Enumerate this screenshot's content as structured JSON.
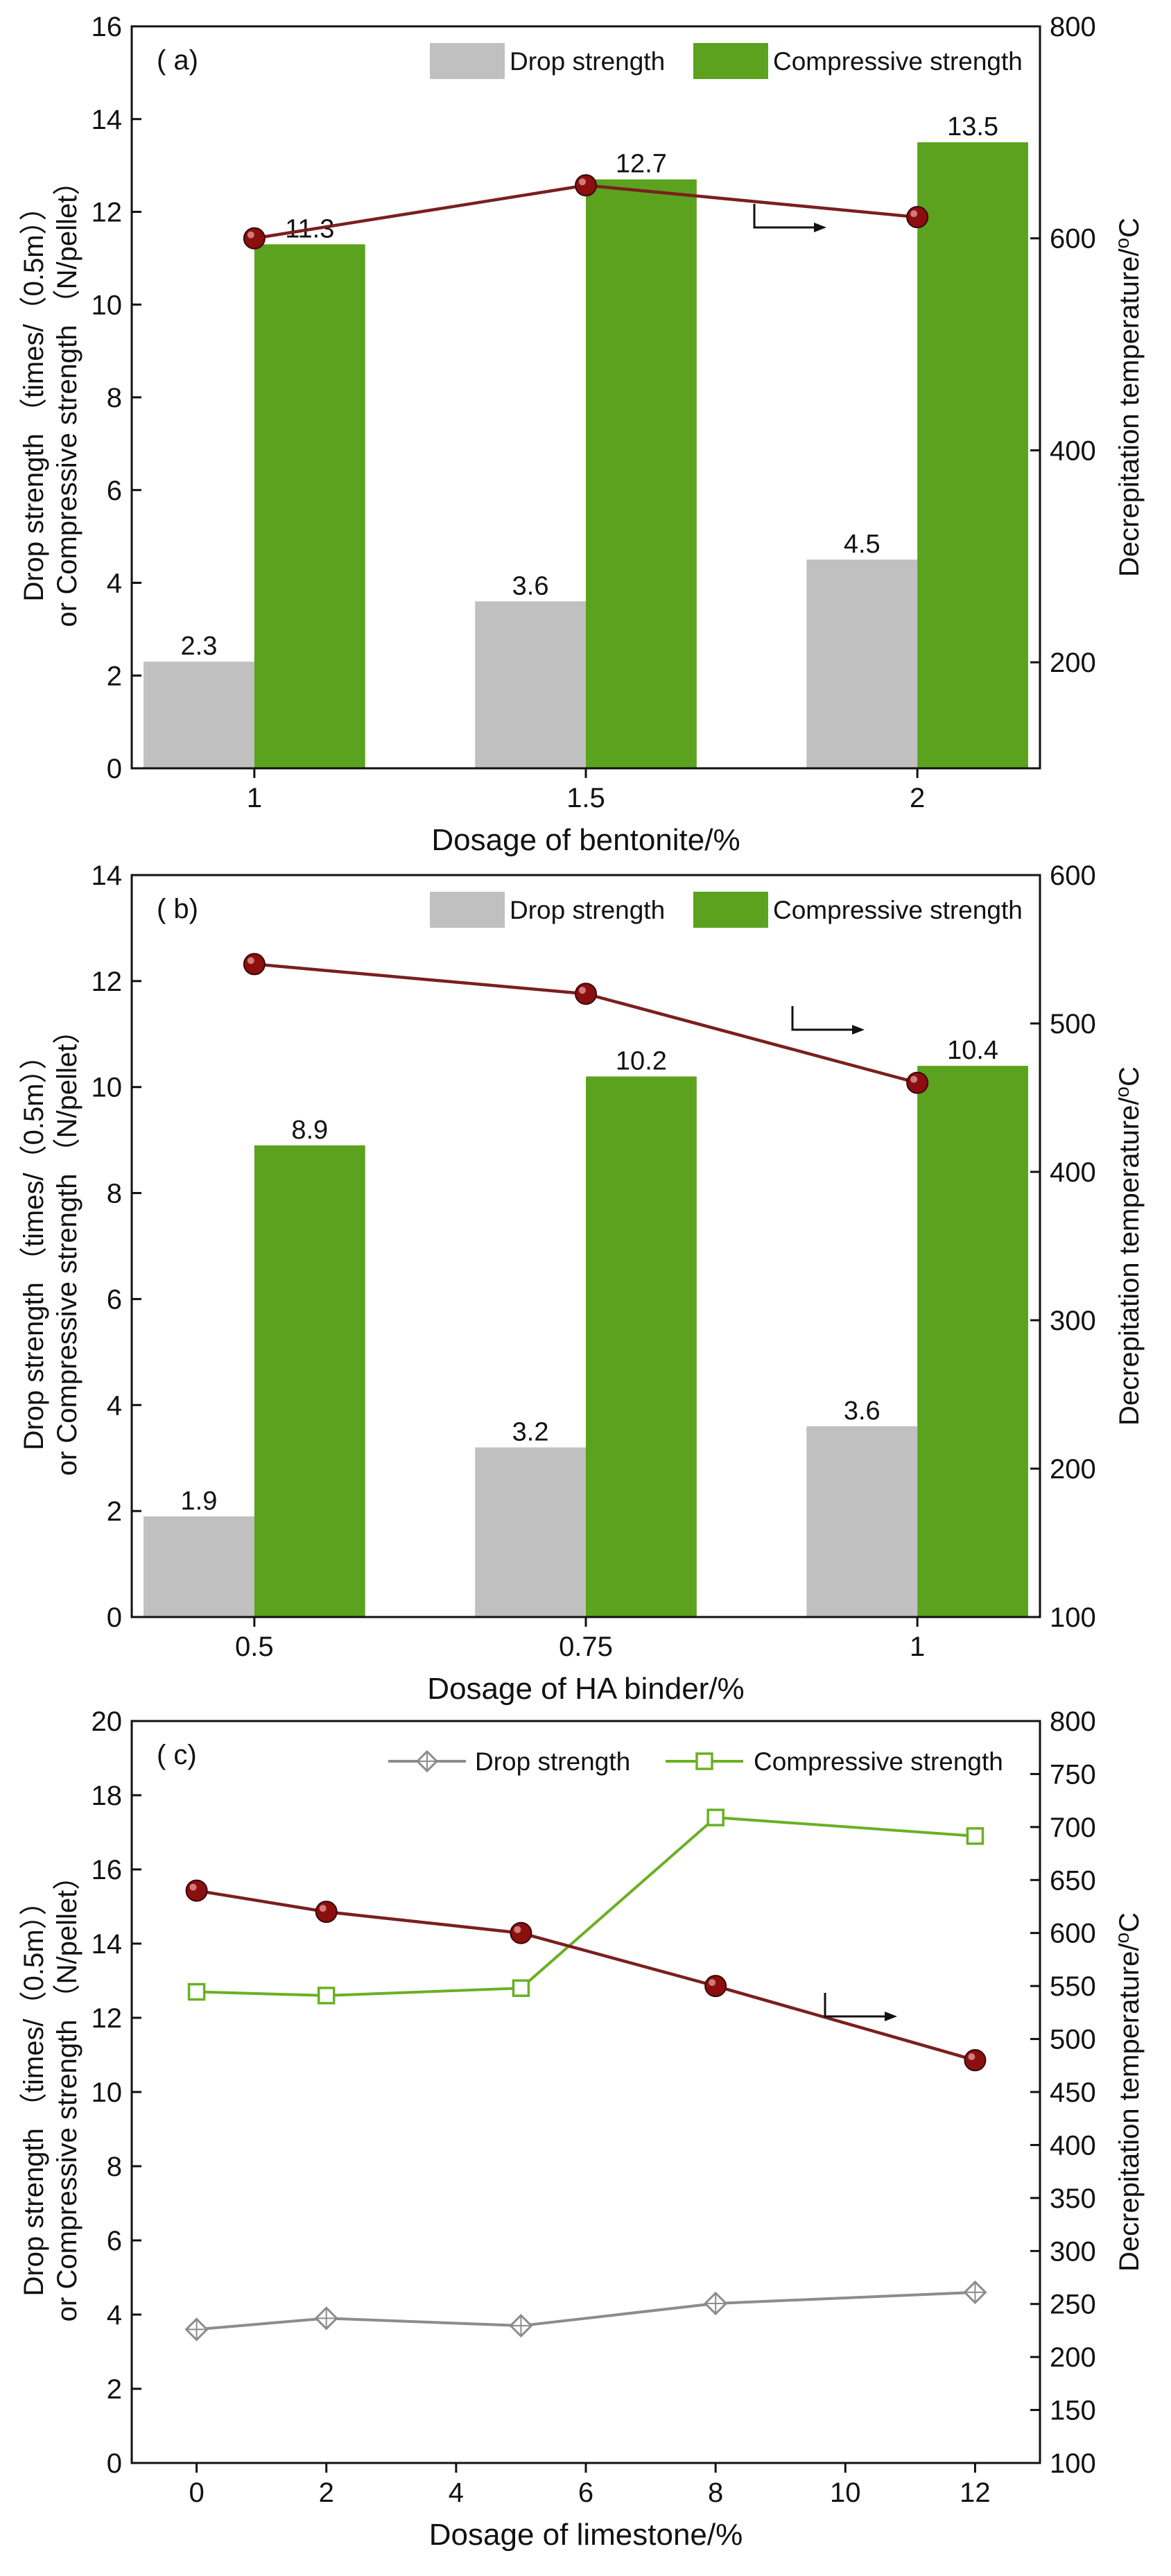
{
  "chart_data": [
    {
      "type": "bar",
      "panel": "( a)",
      "categories": [
        "1",
        "1.5",
        "2"
      ],
      "series": [
        {
          "name": "Drop strength",
          "values": [
            2.3,
            3.6,
            4.5
          ],
          "labels": [
            "2.3",
            "3.6",
            "4.5"
          ],
          "color": "#c0c0c0"
        },
        {
          "name": "Compressive strength",
          "values": [
            11.3,
            12.7,
            13.5
          ],
          "labels": [
            "11.3",
            "12.7",
            "13.5"
          ],
          "color": "#5ba21e"
        }
      ],
      "line": {
        "name": "Decrepitation temperature",
        "axis": "right",
        "values": [
          600,
          650,
          620
        ],
        "color": "#7a1f1f",
        "marker_color": "#8b0f0f"
      },
      "xlabel": "Dosage of bentonite/%",
      "ylabel_line1": "Drop strength （times/（0.5m））",
      "ylabel_line2": "or Compressive strength （N/pellet）",
      "y2label": "Decrepitation temperature/",
      "y2label_unit": "oC",
      "ylim": [
        0,
        16
      ],
      "yticks": [
        0,
        2,
        4,
        6,
        8,
        10,
        12,
        14,
        16
      ],
      "y2lim": [
        100,
        800
      ],
      "y2ticks": [
        200,
        400,
        600,
        800
      ],
      "legend_position": "top-right"
    },
    {
      "type": "bar",
      "panel": "( b)",
      "categories": [
        "0.5",
        "0.75",
        "1"
      ],
      "series": [
        {
          "name": "Drop strength",
          "values": [
            1.9,
            3.2,
            3.6
          ],
          "labels": [
            "1.9",
            "3.2",
            "3.6"
          ],
          "color": "#c0c0c0"
        },
        {
          "name": "Compressive strength",
          "values": [
            8.9,
            10.2,
            10.4
          ],
          "labels": [
            "8.9",
            "10.2",
            "10.4"
          ],
          "color": "#5ba21e"
        }
      ],
      "line": {
        "name": "Decrepitation temperature",
        "axis": "right",
        "values": [
          540,
          520,
          460
        ],
        "color": "#7a1f1f",
        "marker_color": "#8b0f0f"
      },
      "xlabel": "Dosage of HA binder/%",
      "ylabel_line1": "Drop strength （times/（0.5m））",
      "ylabel_line2": "or Compressive strength （N/pellet）",
      "y2label": "Decrepitation temperature/",
      "y2label_unit": "oC",
      "ylim": [
        0,
        14
      ],
      "yticks": [
        0,
        2,
        4,
        6,
        8,
        10,
        12,
        14
      ],
      "y2lim": [
        100,
        600
      ],
      "y2ticks": [
        100,
        200,
        300,
        400,
        500,
        600
      ],
      "legend_position": "top-right"
    },
    {
      "type": "line",
      "panel": "( c)",
      "x": [
        0,
        2,
        5,
        8,
        12
      ],
      "series": [
        {
          "name": "Drop strength",
          "values": [
            3.6,
            3.9,
            3.7,
            4.3,
            4.6
          ],
          "color": "#8c8c8c",
          "marker": "diamond"
        },
        {
          "name": "Compressive strength",
          "values": [
            12.7,
            12.6,
            12.8,
            17.4,
            16.9
          ],
          "color": "#6ab023",
          "marker": "square"
        }
      ],
      "line": {
        "name": "Decrepitation temperature",
        "axis": "right",
        "values": [
          640,
          620,
          600,
          550,
          480
        ],
        "color": "#7a1f1f",
        "marker_color": "#8b0f0f"
      },
      "xlabel": "Dosage of limestone/%",
      "ylabel_line1": "Drop strength （times/（0.5m））",
      "ylabel_line2": "or Compressive strength （N/pellet）",
      "y2label": "Decrepitation temperature/",
      "y2label_unit": "oC",
      "xlim": [
        -1,
        13
      ],
      "xticks": [
        0,
        2,
        4,
        6,
        8,
        10,
        12
      ],
      "ylim": [
        0,
        20
      ],
      "yticks": [
        0,
        2,
        4,
        6,
        8,
        10,
        12,
        14,
        16,
        18,
        20
      ],
      "y2lim": [
        100,
        800
      ],
      "y2ticks": [
        100,
        150,
        200,
        250,
        300,
        350,
        400,
        450,
        500,
        550,
        600,
        650,
        700,
        750,
        800
      ],
      "legend_position": "top-right"
    }
  ]
}
